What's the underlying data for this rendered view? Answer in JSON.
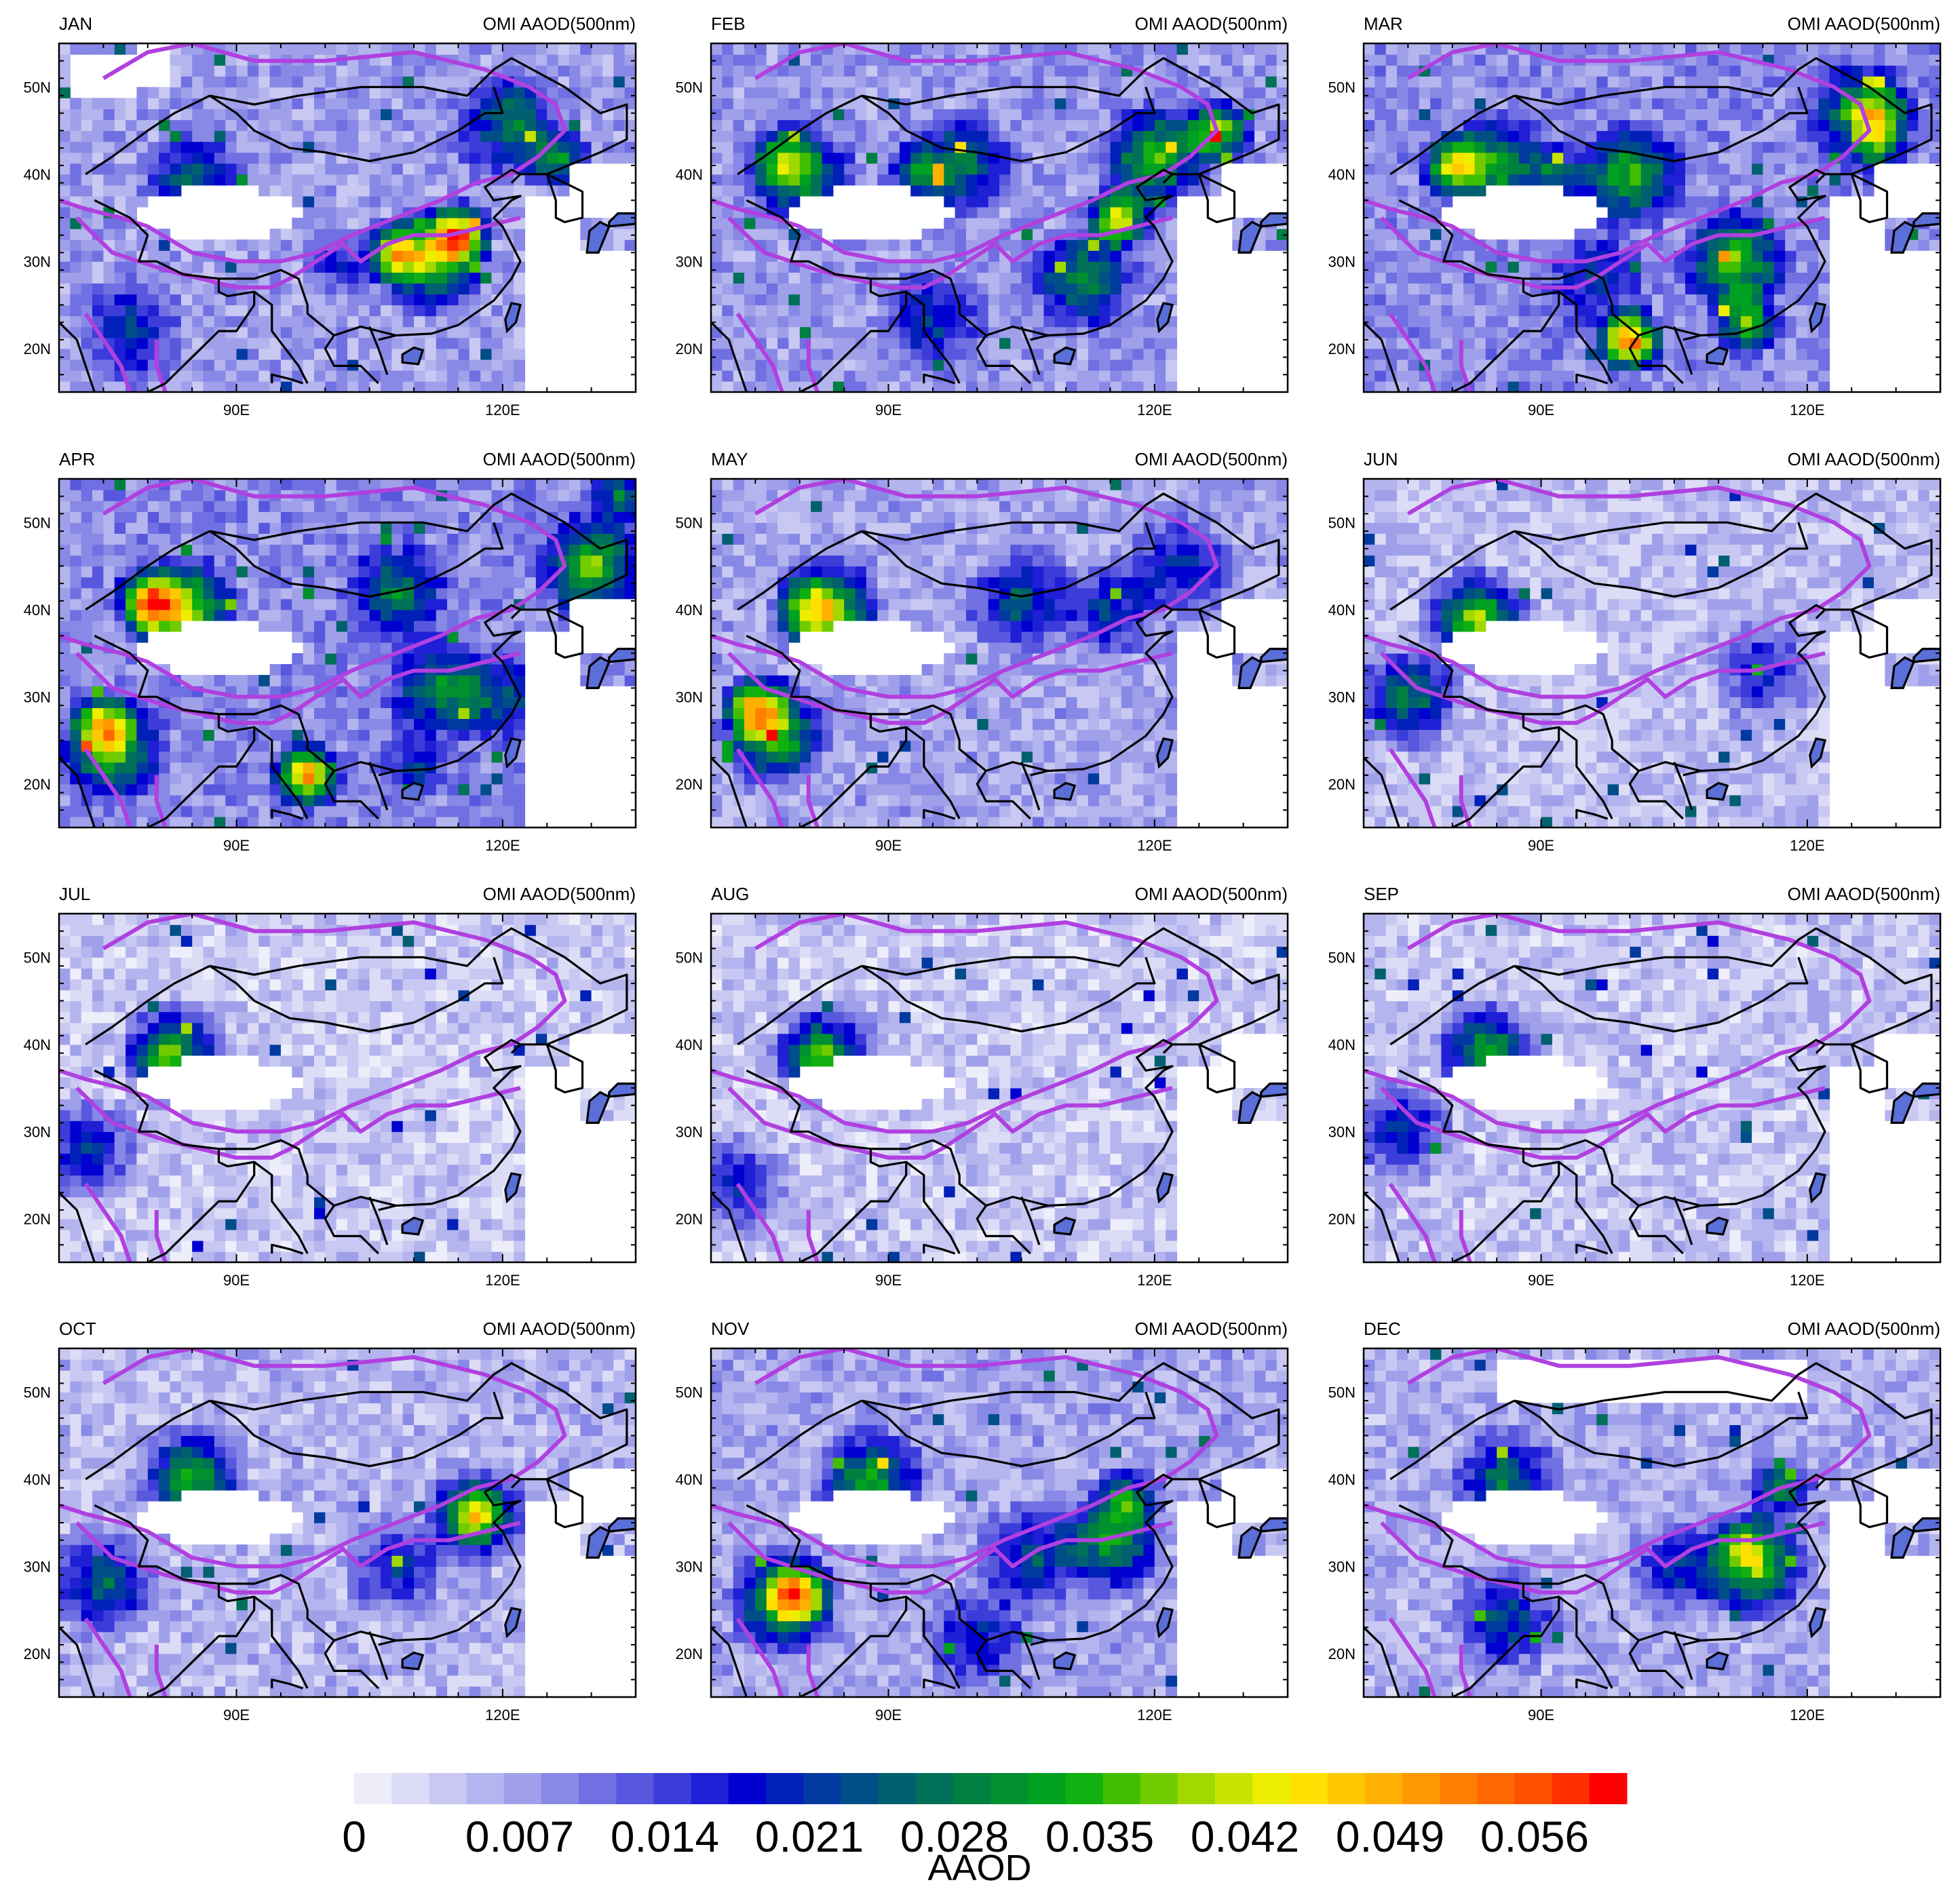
{
  "figure": {
    "title_right": "OMI AAOD(500nm)",
    "colorbar": {
      "title": "AAOD",
      "tick_labels": [
        "0",
        "0.007",
        "0.014",
        "0.021",
        "0.028",
        "0.035",
        "0.042",
        "0.049",
        "0.056"
      ],
      "colors": [
        "#eeeefb",
        "#dcdcf6",
        "#c8c8f2",
        "#b4b4ee",
        "#a0a0ea",
        "#8888e6",
        "#7070e2",
        "#5858de",
        "#3c3cda",
        "#1f1fd6",
        "#0000d0",
        "#0020b8",
        "#003aa0",
        "#004e88",
        "#006070",
        "#007058",
        "#008040",
        "#009030",
        "#00a020",
        "#10b010",
        "#40bf00",
        "#70cc00",
        "#a0d800",
        "#c8e400",
        "#eeee00",
        "#ffe000",
        "#ffc800",
        "#ffb000",
        "#ff9800",
        "#ff8000",
        "#ff6800",
        "#ff5000",
        "#ff3000",
        "#ff0000"
      ]
    },
    "axes": {
      "lon_range": [
        70,
        135
      ],
      "lat_range": [
        15,
        55
      ],
      "x_tick_labels": [
        {
          "lon": 90,
          "label": "90E"
        },
        {
          "lon": 120,
          "label": "120E"
        }
      ],
      "y_tick_labels": [
        {
          "lat": 20,
          "label": "20N"
        },
        {
          "lat": 30,
          "label": "30N"
        },
        {
          "lat": 40,
          "label": "40N"
        },
        {
          "lat": 50,
          "label": "50N"
        }
      ]
    },
    "line_colors": {
      "boundary": "#000000",
      "region_outline": "#b040e0"
    },
    "panels": [
      {
        "month": "JAN",
        "hot": [
          [
            115,
            33,
            2.2
          ],
          [
            108,
            31,
            1.6
          ],
          [
            102,
            30,
            0.6
          ],
          [
            126,
            42,
            1.3
          ],
          [
            122,
            48,
            0.6
          ]
        ],
        "warm": [
          [
            112,
            30,
            2.3
          ],
          [
            85,
            39,
            1.6
          ],
          [
            78,
            22,
            1.3
          ],
          [
            120,
            45,
            1.4
          ]
        ],
        "base": 0.9,
        "missing": [
          [
            75,
            51,
            8
          ],
          [
            81,
            52,
            4
          ]
        ]
      },
      {
        "month": "FEB",
        "hot": [
          [
            116,
            35,
            1.9
          ],
          [
            127,
            45,
            1.8
          ],
          [
            93,
            40,
            0.8
          ],
          [
            78,
            42,
            0.9
          ]
        ],
        "warm": [
          [
            112,
            28,
            2.0
          ],
          [
            98,
            41,
            1.8
          ],
          [
            80,
            40,
            2.1
          ],
          [
            120,
            42,
            2.4
          ],
          [
            95,
            23,
            1.2
          ]
        ],
        "base": 1.0,
        "missing": []
      },
      {
        "month": "MAR",
        "hot": [
          [
            100,
            21,
            2.3
          ],
          [
            113,
            23,
            1.4
          ],
          [
            80,
            41,
            1.6
          ],
          [
            92,
            40,
            0.9
          ],
          [
            128,
            47,
            0.9
          ],
          [
            128,
            43,
            0.8
          ]
        ],
        "warm": [
          [
            112,
            30,
            2.4
          ],
          [
            100,
            40,
            2.2
          ],
          [
            85,
            41,
            2.1
          ],
          [
            126,
            47,
            2.0
          ],
          [
            96,
            28,
            1.0
          ]
        ],
        "base": 1.15,
        "missing": []
      },
      {
        "month": "APR",
        "hot": [
          [
            98,
            21,
            2.3
          ],
          [
            80,
            41,
            1.8
          ],
          [
            75,
            27,
            1.3
          ],
          [
            110,
            22,
            0.7
          ],
          [
            133,
            53,
            0.9
          ]
        ],
        "warm": [
          [
            84,
            40,
            2.8
          ],
          [
            108,
            42,
            1.6
          ],
          [
            130,
            45,
            2.4
          ],
          [
            76,
            24,
            2.4
          ],
          [
            113,
            31,
            1.8
          ],
          [
            120,
            30,
            1.2
          ]
        ],
        "base": 1.2,
        "missing": []
      },
      {
        "month": "MAY",
        "hot": [
          [
            75,
            29,
            1.5
          ],
          [
            81,
            40,
            0.7
          ]
        ],
        "warm": [
          [
            83,
            40,
            2.8
          ],
          [
            77,
            26,
            2.8
          ],
          [
            105,
            41,
            1.6
          ],
          [
            115,
            40,
            1.2
          ],
          [
            123,
            45,
            1.2
          ]
        ],
        "base": 0.8,
        "missing": []
      },
      {
        "month": "JUN",
        "hot": [
          [
            82,
            39,
            0.5
          ]
        ],
        "warm": [
          [
            83,
            39,
            2.3
          ],
          [
            75,
            30,
            2.0
          ],
          [
            115,
            33,
            1.2
          ]
        ],
        "base": 0.45,
        "missing": []
      },
      {
        "month": "JUL",
        "hot": [
          [
            81,
            38,
            0.5
          ]
        ],
        "warm": [
          [
            83,
            39,
            2.3
          ],
          [
            73,
            28,
            1.5
          ]
        ],
        "base": 0.3,
        "missing": []
      },
      {
        "month": "AUG",
        "hot": [
          [
            81,
            38,
            0.5
          ]
        ],
        "warm": [
          [
            83,
            39,
            2.3
          ],
          [
            73,
            24,
            1.3
          ]
        ],
        "base": 0.3,
        "missing": []
      },
      {
        "month": "SEP",
        "hot": [],
        "warm": [
          [
            84,
            39,
            2.5
          ],
          [
            74,
            30,
            1.5
          ]
        ],
        "base": 0.35,
        "missing": []
      },
      {
        "month": "OCT",
        "hot": [
          [
            117,
            36,
            1.1
          ]
        ],
        "warm": [
          [
            85,
            40,
            2.4
          ],
          [
            117,
            36,
            1.9
          ],
          [
            75,
            28,
            1.8
          ],
          [
            108,
            30,
            1.3
          ]
        ],
        "base": 0.55,
        "missing": []
      },
      {
        "month": "NOV",
        "hot": [
          [
            80,
            27,
            1.5
          ],
          [
            117,
            38,
            1.1
          ]
        ],
        "warm": [
          [
            78,
            26,
            2.5
          ],
          [
            115,
            33,
            2.3
          ],
          [
            88,
            40,
            2.2
          ],
          [
            106,
            31,
            1.5
          ],
          [
            100,
            22,
            1.2
          ]
        ],
        "base": 0.8,
        "missing": []
      },
      {
        "month": "DEC",
        "hot": [
          [
            117,
            39,
            1.2
          ],
          [
            113,
            33,
            0.8
          ]
        ],
        "warm": [
          [
            114,
            30,
            2.6
          ],
          [
            86,
            24,
            1.5
          ],
          [
            106,
            30,
            1.3
          ],
          [
            86,
            40,
            1.8
          ]
        ],
        "base": 0.7,
        "missing": [
          [
            102,
            51.5,
            35
          ]
        ]
      }
    ]
  }
}
